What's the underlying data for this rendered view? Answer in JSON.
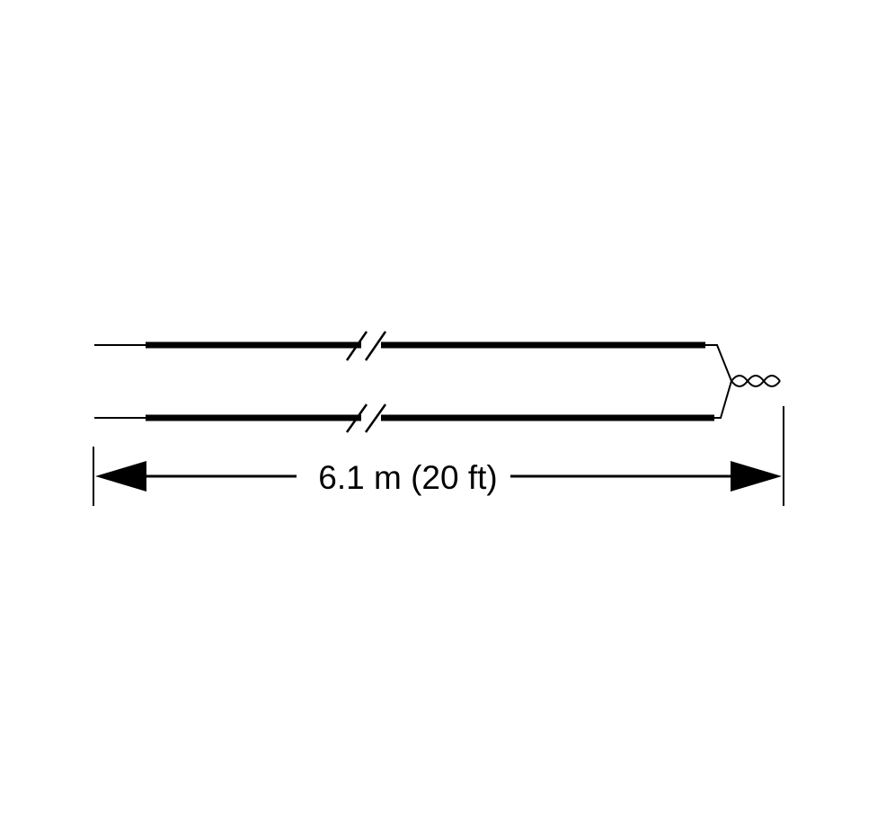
{
  "diagram": {
    "dimension_label": "6.1 m (20 ft)"
  },
  "colors": {
    "line": "#000000",
    "background": "#ffffff"
  }
}
